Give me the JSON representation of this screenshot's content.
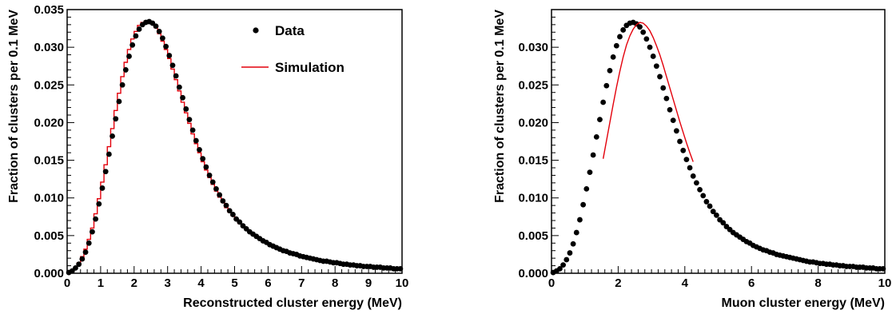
{
  "colors": {
    "data_marker": "#000000",
    "simulation_line": "#e3000b",
    "frame": "#000000"
  },
  "chart_data": [
    {
      "type": "line",
      "xlabel": "Reconstructed cluster energy (MeV)",
      "ylabel": "Fraction of clusters per 0.1 MeV",
      "xlim": [
        0,
        10
      ],
      "ylim": [
        0,
        0.035
      ],
      "x_ticks": [
        "0",
        "1",
        "2",
        "3",
        "4",
        "5",
        "6",
        "7",
        "8",
        "9",
        "10"
      ],
      "y_ticks": [
        "0.000",
        "0.005",
        "0.010",
        "0.015",
        "0.020",
        "0.025",
        "0.030",
        "0.035"
      ],
      "legend": {
        "position": "top-right",
        "entries": [
          {
            "label": "Data",
            "style": "marker"
          },
          {
            "label": "Simulation",
            "style": "line"
          }
        ]
      },
      "series": [
        {
          "name": "Data",
          "style": "marker",
          "x": [
            0.05,
            0.15,
            0.25,
            0.35,
            0.45,
            0.55,
            0.65,
            0.75,
            0.85,
            0.95,
            1.05,
            1.15,
            1.25,
            1.35,
            1.45,
            1.55,
            1.65,
            1.75,
            1.85,
            1.95,
            2.05,
            2.15,
            2.25,
            2.35,
            2.45,
            2.55,
            2.65,
            2.75,
            2.85,
            2.95,
            3.05,
            3.15,
            3.25,
            3.35,
            3.45,
            3.55,
            3.65,
            3.75,
            3.85,
            3.95,
            4.05,
            4.15,
            4.25,
            4.35,
            4.45,
            4.55,
            4.65,
            4.75,
            4.85,
            4.95,
            5.05,
            5.15,
            5.25,
            5.35,
            5.45,
            5.55,
            5.65,
            5.75,
            5.85,
            5.95,
            6.05,
            6.15,
            6.25,
            6.35,
            6.45,
            6.55,
            6.65,
            6.75,
            6.85,
            6.95,
            7.05,
            7.15,
            7.25,
            7.35,
            7.45,
            7.55,
            7.65,
            7.75,
            7.85,
            7.95,
            8.05,
            8.15,
            8.25,
            8.35,
            8.45,
            8.55,
            8.65,
            8.75,
            8.85,
            8.95,
            9.05,
            9.15,
            9.25,
            9.35,
            9.45,
            9.55,
            9.65,
            9.75,
            9.85,
            9.95
          ],
          "y": [
            0.0001,
            0.0003,
            0.0007,
            0.0012,
            0.0019,
            0.0028,
            0.004,
            0.0055,
            0.0072,
            0.0092,
            0.0113,
            0.0135,
            0.0158,
            0.0182,
            0.0205,
            0.0228,
            0.025,
            0.027,
            0.0288,
            0.0303,
            0.0315,
            0.0324,
            0.033,
            0.0333,
            0.0334,
            0.0332,
            0.0328,
            0.0321,
            0.0312,
            0.0301,
            0.0289,
            0.0276,
            0.0262,
            0.0247,
            0.0233,
            0.0218,
            0.0204,
            0.019,
            0.0176,
            0.0164,
            0.0152,
            0.0141,
            0.013,
            0.0121,
            0.0112,
            0.0104,
            0.0096,
            0.009,
            0.0083,
            0.0078,
            0.0072,
            0.0068,
            0.0063,
            0.0059,
            0.0055,
            0.0052,
            0.0049,
            0.0046,
            0.0043,
            0.0041,
            0.0038,
            0.0036,
            0.0034,
            0.0032,
            0.003,
            0.0029,
            0.0027,
            0.0026,
            0.0025,
            0.0023,
            0.0022,
            0.0021,
            0.002,
            0.0019,
            0.0018,
            0.0017,
            0.0016,
            0.0016,
            0.0015,
            0.0014,
            0.0014,
            0.0013,
            0.0012,
            0.0012,
            0.0011,
            0.0011,
            0.001,
            0.001,
            0.0009,
            0.0009,
            0.0009,
            0.0008,
            0.0008,
            0.0008,
            0.0007,
            0.0007,
            0.0007,
            0.0006,
            0.0006,
            0.0006
          ]
        },
        {
          "name": "Simulation",
          "style": "step",
          "x": [
            0.05,
            0.15,
            0.25,
            0.35,
            0.45,
            0.55,
            0.65,
            0.75,
            0.85,
            0.95,
            1.05,
            1.15,
            1.25,
            1.35,
            1.45,
            1.55,
            1.65,
            1.75,
            1.85,
            1.95,
            2.05,
            2.15,
            2.25,
            2.35,
            2.45,
            2.55,
            2.65,
            2.75,
            2.85,
            2.95,
            3.05,
            3.15,
            3.25,
            3.35,
            3.45,
            3.55,
            3.65,
            3.75,
            3.85,
            3.95,
            4.05,
            4.15,
            4.25,
            4.35,
            4.45,
            4.55,
            4.65,
            4.75,
            4.85,
            4.95,
            5.05,
            5.15,
            5.25,
            5.35,
            5.45,
            5.55,
            5.65,
            5.75,
            5.85,
            5.95,
            6.05,
            6.15,
            6.25,
            6.35,
            6.45,
            6.55,
            6.65,
            6.75,
            6.85,
            6.95,
            7.05,
            7.15,
            7.25,
            7.35,
            7.45,
            7.55,
            7.65,
            7.75,
            7.85,
            7.95,
            8.05,
            8.15,
            8.25,
            8.35,
            8.45,
            8.55,
            8.65,
            8.75,
            8.85,
            8.95,
            9.05,
            9.15,
            9.25,
            9.35,
            9.45,
            9.55,
            9.65,
            9.75,
            9.85,
            9.95
          ],
          "y": [
            0.0001,
            0.0004,
            0.0008,
            0.0014,
            0.0022,
            0.0032,
            0.0045,
            0.006,
            0.0079,
            0.0099,
            0.0121,
            0.0144,
            0.0168,
            0.0192,
            0.0216,
            0.0239,
            0.0261,
            0.028,
            0.0297,
            0.0311,
            0.0321,
            0.0329,
            0.0333,
            0.0335,
            0.0334,
            0.0331,
            0.0326,
            0.0318,
            0.0308,
            0.0297,
            0.0285,
            0.0271,
            0.0257,
            0.0242,
            0.0227,
            0.0213,
            0.0199,
            0.0185,
            0.0172,
            0.016,
            0.0148,
            0.0137,
            0.0127,
            0.0118,
            0.0109,
            0.0101,
            0.0094,
            0.0087,
            0.0081,
            0.0076,
            0.0071,
            0.0066,
            0.0062,
            0.0058,
            0.0054,
            0.0051,
            0.0048,
            0.0045,
            0.0042,
            0.004,
            0.0038,
            0.0036,
            0.0034,
            0.0032,
            0.003,
            0.0029,
            0.0027,
            0.0026,
            0.0025,
            0.0023,
            0.0022,
            0.0021,
            0.002,
            0.0019,
            0.0018,
            0.0017,
            0.0017,
            0.0016,
            0.0015,
            0.0015,
            0.0014,
            0.0013,
            0.0013,
            0.0012,
            0.0012,
            0.0011,
            0.0011,
            0.001,
            0.001,
            0.0009,
            0.0009,
            0.0009,
            0.0008,
            0.0008,
            0.0008,
            0.0007,
            0.0007,
            0.0007,
            0.0006,
            0.0006
          ]
        }
      ]
    },
    {
      "type": "line",
      "xlabel": "Muon cluster energy (MeV)",
      "ylabel": "Fraction of clusters per 0.1 MeV",
      "xlim": [
        0,
        10
      ],
      "ylim": [
        0,
        0.035
      ],
      "x_ticks": [
        "0",
        "2",
        "4",
        "6",
        "8",
        "10"
      ],
      "y_ticks": [
        "0.000",
        "0.005",
        "0.010",
        "0.015",
        "0.020",
        "0.025",
        "0.030"
      ],
      "series": [
        {
          "style": "marker",
          "x": [
            0.05,
            0.15,
            0.25,
            0.35,
            0.45,
            0.55,
            0.65,
            0.75,
            0.85,
            0.95,
            1.05,
            1.15,
            1.25,
            1.35,
            1.45,
            1.55,
            1.65,
            1.75,
            1.85,
            1.95,
            2.05,
            2.15,
            2.25,
            2.35,
            2.45,
            2.55,
            2.65,
            2.75,
            2.85,
            2.95,
            3.05,
            3.15,
            3.25,
            3.35,
            3.45,
            3.55,
            3.65,
            3.75,
            3.85,
            3.95,
            4.05,
            4.15,
            4.25,
            4.35,
            4.45,
            4.55,
            4.65,
            4.75,
            4.85,
            4.95,
            5.05,
            5.15,
            5.25,
            5.35,
            5.45,
            5.55,
            5.65,
            5.75,
            5.85,
            5.95,
            6.05,
            6.15,
            6.25,
            6.35,
            6.45,
            6.55,
            6.65,
            6.75,
            6.85,
            6.95,
            7.05,
            7.15,
            7.25,
            7.35,
            7.45,
            7.55,
            7.65,
            7.75,
            7.85,
            7.95,
            8.05,
            8.15,
            8.25,
            8.35,
            8.45,
            8.55,
            8.65,
            8.75,
            8.85,
            8.95,
            9.05,
            9.15,
            9.25,
            9.35,
            9.45,
            9.55,
            9.65,
            9.75,
            9.85,
            9.95
          ],
          "y": [
            0.0001,
            0.0003,
            0.0006,
            0.0011,
            0.0018,
            0.0027,
            0.0039,
            0.0054,
            0.0071,
            0.0091,
            0.0112,
            0.0134,
            0.0157,
            0.0181,
            0.0204,
            0.0227,
            0.0249,
            0.0269,
            0.0287,
            0.0302,
            0.0314,
            0.0323,
            0.0329,
            0.0332,
            0.0333,
            0.0331,
            0.0327,
            0.032,
            0.0311,
            0.03,
            0.0288,
            0.0275,
            0.0261,
            0.0246,
            0.0232,
            0.0217,
            0.0203,
            0.0189,
            0.0175,
            0.0163,
            0.0151,
            0.014,
            0.0129,
            0.012,
            0.0111,
            0.0103,
            0.0095,
            0.0089,
            0.0082,
            0.0077,
            0.0071,
            0.0067,
            0.0062,
            0.0058,
            0.0054,
            0.0051,
            0.0048,
            0.0045,
            0.0042,
            0.004,
            0.0037,
            0.0035,
            0.0033,
            0.0031,
            0.003,
            0.0028,
            0.0027,
            0.0025,
            0.0024,
            0.0023,
            0.0022,
            0.0021,
            0.002,
            0.0019,
            0.0018,
            0.0017,
            0.0016,
            0.0015,
            0.0015,
            0.0014,
            0.0013,
            0.0013,
            0.0012,
            0.0012,
            0.0011,
            0.0011,
            0.001,
            0.001,
            0.0009,
            0.0009,
            0.0009,
            0.0008,
            0.0008,
            0.0008,
            0.0007,
            0.0007,
            0.0007,
            0.0006,
            0.0006,
            0.0006
          ]
        },
        {
          "style": "line",
          "x": [
            1.55,
            1.65,
            1.75,
            1.85,
            1.95,
            2.05,
            2.15,
            2.25,
            2.35,
            2.45,
            2.55,
            2.65,
            2.75,
            2.85,
            2.95,
            3.05,
            3.15,
            3.25,
            3.35,
            3.45,
            3.55,
            3.65,
            3.75,
            3.85,
            3.95,
            4.05,
            4.15,
            4.25
          ],
          "y": [
            0.0152,
            0.0176,
            0.02,
            0.0224,
            0.0247,
            0.0268,
            0.0287,
            0.0303,
            0.0315,
            0.0324,
            0.033,
            0.0333,
            0.0332,
            0.0328,
            0.0322,
            0.0313,
            0.0302,
            0.029,
            0.0276,
            0.0261,
            0.0246,
            0.0231,
            0.0216,
            0.0201,
            0.0187,
            0.0173,
            0.016,
            0.0148
          ]
        }
      ]
    }
  ]
}
